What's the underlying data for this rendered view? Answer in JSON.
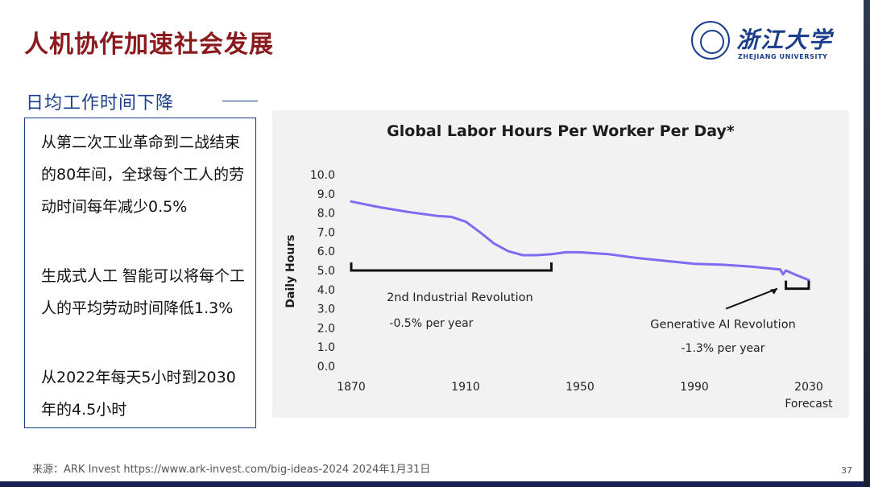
{
  "slide": {
    "title": "人机协作加速社会发展",
    "section_heading": "日均工作时间下降",
    "paragraphs": [
      "从第二次工业革命到二战结束的80年间，全球每个工人的劳动时间每年减少0.5%",
      "生成式人工 智能可以将每个工人的平均劳动时间降低1.3%",
      "从2022年每天5小时到2030年的4.5小时"
    ],
    "source": "来源：ARK Invest https://www.ark-invest.com/big-ideas-2024  2024年1月31日",
    "page_number": "37"
  },
  "logo": {
    "name_cn": "浙江大学",
    "name_en": "ZHEJIANG UNIVERSITY"
  },
  "colors": {
    "title": "#8a1a1e",
    "accent_blue": "#1b3e8c",
    "line": "#7b6cf0",
    "panel_bg": "#f2f2f2"
  },
  "chart_data": {
    "type": "line",
    "title": "Global Labor Hours Per Worker Per Day*",
    "xlabel": "",
    "ylabel": "Daily Hours",
    "xlim": [
      1870,
      2030
    ],
    "ylim": [
      0,
      10
    ],
    "x_ticks": [
      "1870",
      "1910",
      "1950",
      "1990",
      "2030"
    ],
    "x_sublabel": "Forecast",
    "y_ticks": [
      "0.0",
      "1.0",
      "2.0",
      "3.0",
      "4.0",
      "5.0",
      "6.0",
      "7.0",
      "8.0",
      "9.0",
      "10.0"
    ],
    "grid": false,
    "series": [
      {
        "x": [
          1870,
          1880,
          1890,
          1900,
          1905,
          1910,
          1915,
          1920,
          1925,
          1930,
          1935,
          1940,
          1945,
          1950,
          1955,
          1960,
          1970,
          1980,
          1990,
          2000,
          2010,
          2020,
          2021,
          2022,
          2025,
          2030
        ],
        "y": [
          8.6,
          8.3,
          8.05,
          7.85,
          7.8,
          7.55,
          7.0,
          6.4,
          6.0,
          5.8,
          5.8,
          5.85,
          5.95,
          5.95,
          5.9,
          5.85,
          5.65,
          5.5,
          5.35,
          5.3,
          5.2,
          5.05,
          4.8,
          5.0,
          4.8,
          4.5
        ]
      }
    ],
    "annotations": [
      {
        "label": "2nd Industrial Revolution",
        "sublabel": "-0.5% per year",
        "x_range": [
          1870,
          1940
        ]
      },
      {
        "label": "Generative AI Revolution",
        "sublabel": "-1.3% per year",
        "x_range": [
          2022,
          2030
        ]
      }
    ]
  }
}
